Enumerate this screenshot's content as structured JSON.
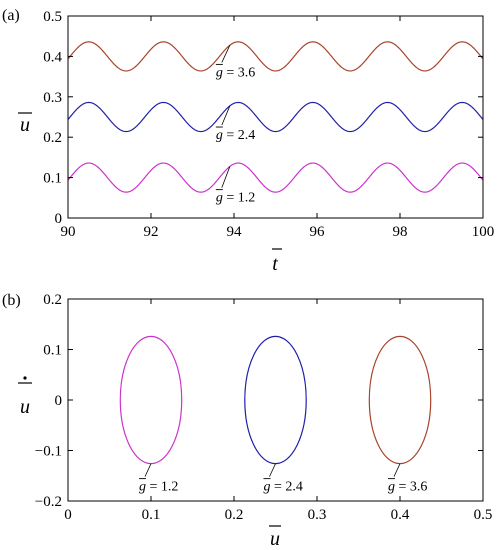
{
  "chart_data": [
    {
      "panel": "(a)",
      "type": "line",
      "xlabel": "t",
      "ylabel": "u",
      "xlim": [
        90,
        100
      ],
      "ylim": [
        0,
        0.5
      ],
      "xticks": [
        90,
        92,
        94,
        96,
        98,
        100
      ],
      "yticks": [
        0,
        0.1,
        0.2,
        0.3,
        0.4,
        0.5
      ],
      "grid": false,
      "series": [
        {
          "name": "g = 1.2",
          "color": "#cc33cc",
          "mean": 0.1,
          "amplitude": 0.036,
          "period": 1.8,
          "peak_x": 90.5,
          "label_x": 93.9,
          "label_y": 0.09
        },
        {
          "name": "g = 2.4",
          "color": "#1f1faa",
          "mean": 0.25,
          "amplitude": 0.036,
          "period": 1.8,
          "peak_x": 90.5,
          "label_x": 93.9,
          "label_y": 0.245
        },
        {
          "name": "g = 3.6",
          "color": "#a8442a",
          "mean": 0.4,
          "amplitude": 0.036,
          "period": 1.8,
          "peak_x": 90.5,
          "label_x": 93.9,
          "label_y": 0.4
        }
      ]
    },
    {
      "panel": "(b)",
      "type": "line",
      "xlabel": "u",
      "ylabel": "u",
      "xlim": [
        0,
        0.5
      ],
      "ylim": [
        -0.2,
        0.2
      ],
      "xticks": [
        0,
        0.1,
        0.2,
        0.3,
        0.4,
        0.5
      ],
      "yticks": [
        -0.2,
        -0.1,
        0,
        0.1,
        0.2
      ],
      "ytick_labels": [
        "−0.2",
        "−0.1",
        "0",
        "0.1",
        "0.2"
      ],
      "grid": false,
      "series": [
        {
          "name": "g = 1.2",
          "color": "#cc33cc",
          "center_x": 0.1,
          "radius_x": 0.037,
          "radius_y": 0.126
        },
        {
          "name": "g = 2.4",
          "color": "#1f1faa",
          "center_x": 0.25,
          "radius_x": 0.037,
          "radius_y": 0.126
        },
        {
          "name": "g = 3.6",
          "color": "#a8442a",
          "center_x": 0.4,
          "radius_x": 0.037,
          "radius_y": 0.126
        }
      ]
    }
  ]
}
